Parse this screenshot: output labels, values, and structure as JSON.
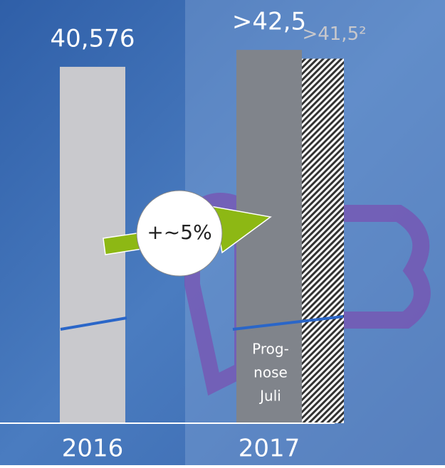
{
  "chart_data": {
    "type": "bar",
    "categories": [
      "2016",
      "2017"
    ],
    "series": [
      {
        "color": "#c9c9cd",
        "values": [
          40.576,
          42.5
        ],
        "value_labels": [
          "40,576",
          ">42,5"
        ]
      },
      {
        "color": "#ffffff",
        "pattern": "hatch",
        "values": [
          null,
          41.5
        ],
        "value_labels": [
          null,
          ">41,5²"
        ]
      }
    ],
    "ylim": [
      0,
      43
    ],
    "annotations": {
      "growth": "+~5%",
      "forecast_note": [
        "Prog-",
        "nose",
        "Juli"
      ]
    }
  }
}
